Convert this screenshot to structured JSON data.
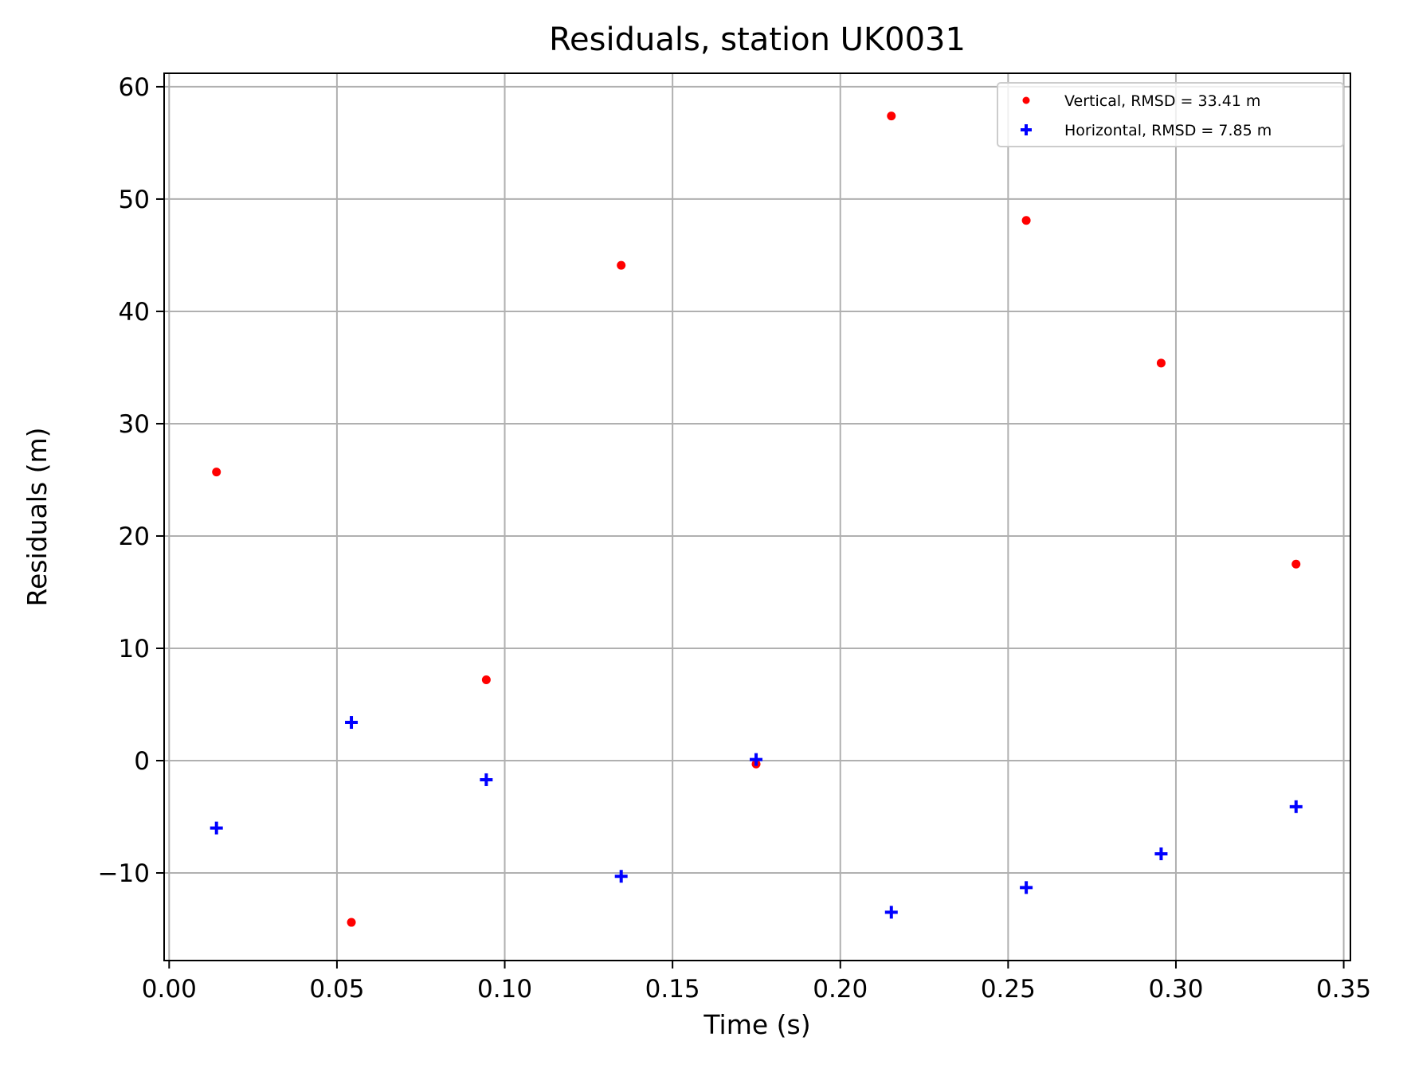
{
  "chart_data": {
    "type": "scatter",
    "title": "Residuals, station UK0031",
    "xlabel": "Time (s)",
    "ylabel": "Residuals (m)",
    "xlim": [
      -0.0015,
      0.352
    ],
    "ylim": [
      -17.8,
      61.2
    ],
    "xticks": [
      0.0,
      0.05,
      0.1,
      0.15,
      0.2,
      0.25,
      0.3,
      0.35
    ],
    "xtick_labels": [
      "0.00",
      "0.05",
      "0.10",
      "0.15",
      "0.20",
      "0.25",
      "0.30",
      "0.35"
    ],
    "yticks": [
      -10,
      0,
      10,
      20,
      30,
      40,
      50,
      60
    ],
    "ytick_labels": [
      "−10",
      "0",
      "10",
      "20",
      "30",
      "40",
      "50",
      "60"
    ],
    "grid": true,
    "legend_position": "top-right",
    "series": [
      {
        "name": "Vertical, RMSD = 33.41 m",
        "marker": "dot",
        "color": "#ff0000",
        "x": [
          0.0141,
          0.0543,
          0.0945,
          0.1347,
          0.1749,
          0.2152,
          0.2554,
          0.2956,
          0.3358
        ],
        "y": [
          25.7,
          -14.4,
          7.2,
          44.1,
          -0.3,
          57.4,
          48.1,
          35.4,
          17.5
        ]
      },
      {
        "name": "Horizontal, RMSD = 7.85 m",
        "marker": "plus",
        "color": "#0000ff",
        "x": [
          0.0141,
          0.0543,
          0.0945,
          0.1347,
          0.1749,
          0.2152,
          0.2554,
          0.2956,
          0.3358
        ],
        "y": [
          -6.0,
          3.4,
          -1.7,
          -10.3,
          0.1,
          -13.5,
          -11.3,
          -8.3,
          -4.1
        ]
      }
    ]
  }
}
